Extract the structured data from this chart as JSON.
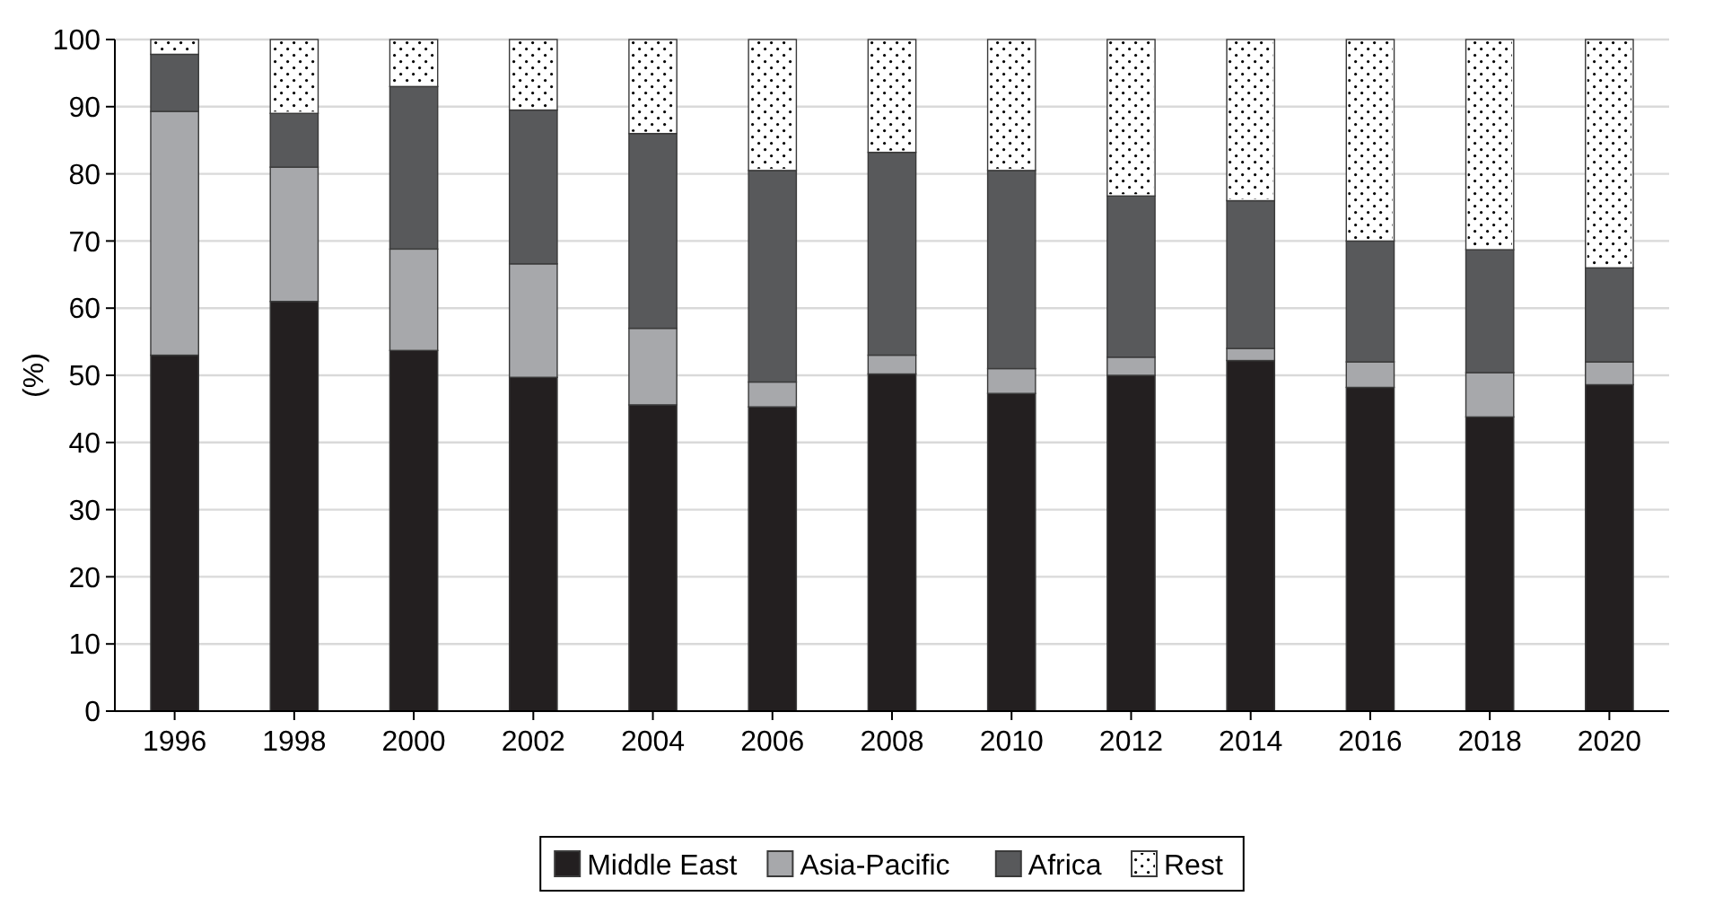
{
  "chart_data": {
    "type": "bar",
    "stacked": true,
    "ylabel": "(%)",
    "categories": [
      "1996",
      "1998",
      "2000",
      "2002",
      "2004",
      "2006",
      "2008",
      "2010",
      "2012",
      "2014",
      "2016",
      "2018",
      "2020"
    ],
    "series": [
      {
        "name": "Middle East",
        "color": "#231f20",
        "values": [
          53,
          61,
          53.7,
          49.7,
          45.6,
          45.3,
          50.2,
          47.3,
          50,
          52.2,
          48.2,
          43.8,
          48.6
        ]
      },
      {
        "name": "Asia-Pacific",
        "color": "#a7a8ab",
        "values": [
          36.3,
          20,
          15.1,
          16.9,
          11.4,
          3.7,
          2.8,
          3.7,
          2.7,
          1.8,
          3.8,
          6.6,
          3.4
        ]
      },
      {
        "name": "Africa",
        "color": "#58595b",
        "values": [
          8.5,
          8,
          24.2,
          22.9,
          29,
          31.5,
          30.2,
          29.5,
          24,
          22,
          18,
          18.3,
          14
        ]
      },
      {
        "name": "Rest",
        "color": "#ffffff",
        "values": [
          2.2,
          11,
          7,
          10.5,
          14,
          19.5,
          16.8,
          19.5,
          23.3,
          24,
          30,
          31.3,
          34
        ]
      }
    ],
    "ylim": [
      0,
      100
    ],
    "yticks": [
      0,
      10,
      20,
      30,
      40,
      50,
      60,
      70,
      80,
      90,
      100
    ],
    "grid": "y",
    "legend": "bottom"
  }
}
